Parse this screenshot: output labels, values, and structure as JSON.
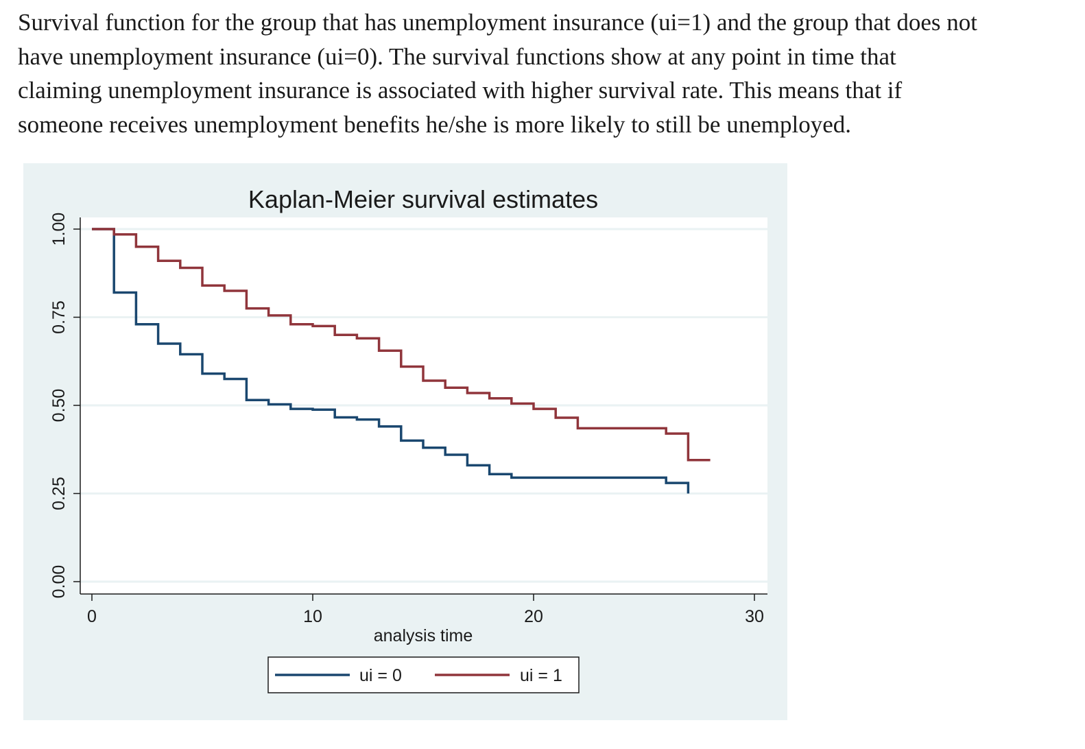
{
  "caption": "Survival function for the group that has unemployment insurance (ui=1) and the group that does not\nhave unemployment insurance (ui=0).  The survival functions show at any point in time that\nclaiming unemployment insurance is associated with higher survival rate.  This means that if\nsomeone receives unemployment benefits he/she is more likely to still be unemployed.",
  "colors": {
    "panel_background": "#eaf2f3",
    "plot_background": "#ffffff",
    "grid": "#eaf2f3",
    "ui0": "#1a476f",
    "ui1": "#90353b"
  },
  "chart_data": {
    "type": "line",
    "step": true,
    "title": "Kaplan-Meier survival estimates",
    "xlabel": "analysis time",
    "ylabel": "",
    "xlim": [
      0,
      30
    ],
    "ylim": [
      0,
      1
    ],
    "x_ticks": [
      0,
      10,
      20,
      30
    ],
    "y_ticks": [
      0,
      0.25,
      0.5,
      0.75,
      1
    ],
    "x_tick_labels": [
      "0",
      "10",
      "20",
      "30"
    ],
    "y_tick_labels": [
      "0.00",
      "0.25",
      "0.50",
      "0.75",
      "1.00"
    ],
    "grid": true,
    "legend_position": "bottom",
    "series": [
      {
        "name": "ui = 0",
        "color": "#1a476f",
        "points": [
          [
            0,
            1.0
          ],
          [
            1,
            0.82
          ],
          [
            2,
            0.73
          ],
          [
            3,
            0.675
          ],
          [
            4,
            0.645
          ],
          [
            5,
            0.59
          ],
          [
            6,
            0.575
          ],
          [
            7,
            0.515
          ],
          [
            8,
            0.503
          ],
          [
            9,
            0.49
          ],
          [
            10,
            0.488
          ],
          [
            11,
            0.466
          ],
          [
            12,
            0.46
          ],
          [
            13,
            0.44
          ],
          [
            14,
            0.4
          ],
          [
            15,
            0.38
          ],
          [
            16,
            0.36
          ],
          [
            17,
            0.33
          ],
          [
            18,
            0.305
          ],
          [
            19,
            0.295
          ],
          [
            26,
            0.28
          ],
          [
            27,
            0.25
          ]
        ]
      },
      {
        "name": "ui = 1",
        "color": "#90353b",
        "points": [
          [
            0,
            1.0
          ],
          [
            1,
            0.985
          ],
          [
            2,
            0.95
          ],
          [
            3,
            0.91
          ],
          [
            4,
            0.89
          ],
          [
            5,
            0.84
          ],
          [
            6,
            0.825
          ],
          [
            7,
            0.775
          ],
          [
            8,
            0.755
          ],
          [
            9,
            0.73
          ],
          [
            10,
            0.725
          ],
          [
            11,
            0.7
          ],
          [
            12,
            0.69
          ],
          [
            13,
            0.655
          ],
          [
            14,
            0.61
          ],
          [
            15,
            0.57
          ],
          [
            16,
            0.55
          ],
          [
            17,
            0.535
          ],
          [
            18,
            0.52
          ],
          [
            19,
            0.505
          ],
          [
            20,
            0.49
          ],
          [
            21,
            0.465
          ],
          [
            22,
            0.435
          ],
          [
            26,
            0.42
          ],
          [
            27,
            0.345
          ],
          [
            28,
            0.345
          ]
        ]
      }
    ]
  }
}
